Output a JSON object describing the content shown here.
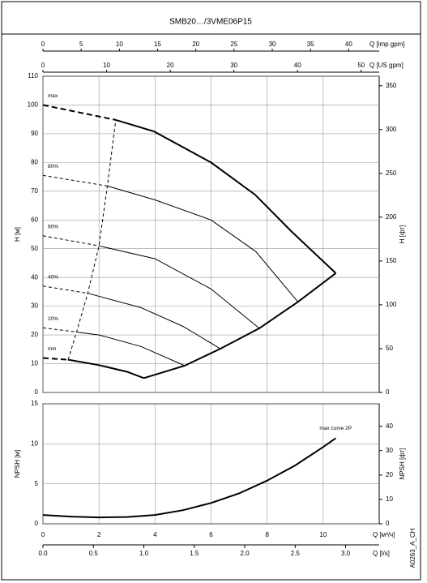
{
  "title": "SMB20…/3VME06P15",
  "code": "A0263_A_CH",
  "chart_data": [
    {
      "type": "line",
      "ylabel": "H [м]",
      "y2label": "H [фт]",
      "xlim": [
        0,
        12
      ],
      "xticks": [
        0,
        2,
        4,
        6,
        8,
        10
      ],
      "ylim": [
        0,
        110
      ],
      "yticks": [
        0,
        10,
        20,
        30,
        40,
        50,
        60,
        70,
        80,
        90,
        100,
        110
      ],
      "y2lim": [
        0,
        360.9
      ],
      "y2ticks": [
        0,
        50,
        100,
        150,
        200,
        250,
        300,
        350
      ],
      "grid": true,
      "top_axes": [
        {
          "label": "Q [imp gpm]",
          "xlim": [
            0,
            43.99
          ],
          "xticks": [
            0,
            5,
            10,
            15,
            20,
            25,
            30,
            35,
            40
          ]
        },
        {
          "label": "Q [US gpm]",
          "xlim": [
            0,
            52.83
          ],
          "xticks": [
            0,
            10,
            20,
            30,
            40,
            50
          ]
        }
      ],
      "series": [
        {
          "name": "max",
          "color": "#000000",
          "width": 2,
          "dashed_x": [
            0,
            2.6
          ],
          "dashed_values": [
            100,
            94.8
          ],
          "x": [
            2.6,
            3.96,
            6,
            7.57,
            8.87,
            10.45
          ],
          "values": [
            94.8,
            90.8,
            80,
            68.8,
            56,
            41.5
          ]
        },
        {
          "name": "80%",
          "color": "#000000",
          "width": 1,
          "dashed_x": [
            0,
            2.3
          ],
          "dashed_values": [
            75.5,
            71.8
          ],
          "x": [
            2.3,
            4,
            6,
            7.6,
            9.1
          ],
          "values": [
            71.8,
            67,
            60,
            49,
            31.5
          ]
        },
        {
          "name": "60%",
          "color": "#000000",
          "width": 1,
          "dashed_x": [
            0,
            2
          ],
          "dashed_values": [
            54.5,
            51
          ],
          "x": [
            2,
            4,
            6,
            7.72
          ],
          "values": [
            51,
            46.5,
            36,
            22.3
          ]
        },
        {
          "name": "40%",
          "color": "#000000",
          "width": 1,
          "dashed_x": [
            0,
            1.6
          ],
          "dashed_values": [
            37,
            34.5
          ],
          "x": [
            1.6,
            3.5,
            5,
            6.33
          ],
          "values": [
            34.5,
            29.5,
            23,
            15.2
          ]
        },
        {
          "name": "20%",
          "color": "#000000",
          "width": 1,
          "dashed_x": [
            0,
            1.2
          ],
          "dashed_values": [
            22.5,
            21
          ],
          "x": [
            1.2,
            2,
            3.5,
            5.06
          ],
          "values": [
            21,
            20,
            16,
            9.3
          ]
        },
        {
          "name": "min",
          "color": "#000000",
          "width": 2,
          "dashed_x": [
            0,
            0.9
          ],
          "dashed_values": [
            12,
            11.4
          ],
          "x": [
            0.9,
            2,
            3,
            3.6
          ],
          "values": [
            11.4,
            9.5,
            7.2,
            5
          ]
        },
        {
          "color": "#000000",
          "width": 2,
          "x": [
            3.6,
            5.06,
            6.33,
            7.72,
            9.1,
            10.45
          ],
          "values": [
            5,
            9.3,
            15.2,
            22.3,
            31.5,
            41.5
          ]
        },
        {
          "color": "#000000",
          "width": 1,
          "dashed": true,
          "x": [
            0.9,
            1.2,
            1.6,
            2,
            2.3,
            2.6
          ],
          "values": [
            11.4,
            21,
            34.5,
            51,
            71.8,
            94.8
          ]
        }
      ]
    },
    {
      "type": "line",
      "ylabel": "NPSH [м]",
      "y2label": "NPSH [фт]",
      "xlabel": "Q [м³/ч]",
      "xlim": [
        0,
        12
      ],
      "xticks": [
        0,
        2,
        4,
        6,
        8,
        10
      ],
      "x2label": "Q [l/s]",
      "x2lim": [
        0,
        3.333
      ],
      "x2ticks": [
        {
          "value": 0,
          "label": "0.0"
        },
        0.5,
        {
          "value": 1,
          "label": "1.0"
        },
        1.5,
        {
          "value": 2,
          "label": "2.0"
        },
        2.5,
        {
          "value": 3,
          "label": "3.0"
        }
      ],
      "ylim": [
        0,
        15
      ],
      "yticks": [
        0,
        5,
        10,
        15
      ],
      "y2lim": [
        0,
        49.2
      ],
      "y2ticks": [
        0,
        10,
        20,
        30,
        40
      ],
      "grid": true,
      "series": [
        {
          "name": "max curve 2P",
          "color": "#000000",
          "width": 2,
          "x": [
            0,
            1,
            2,
            3,
            4,
            5,
            6,
            7,
            8,
            9,
            10,
            10.45
          ],
          "values": [
            1.1,
            0.9,
            0.8,
            0.85,
            1.1,
            1.7,
            2.6,
            3.8,
            5.4,
            7.3,
            9.6,
            10.7
          ]
        }
      ]
    }
  ]
}
